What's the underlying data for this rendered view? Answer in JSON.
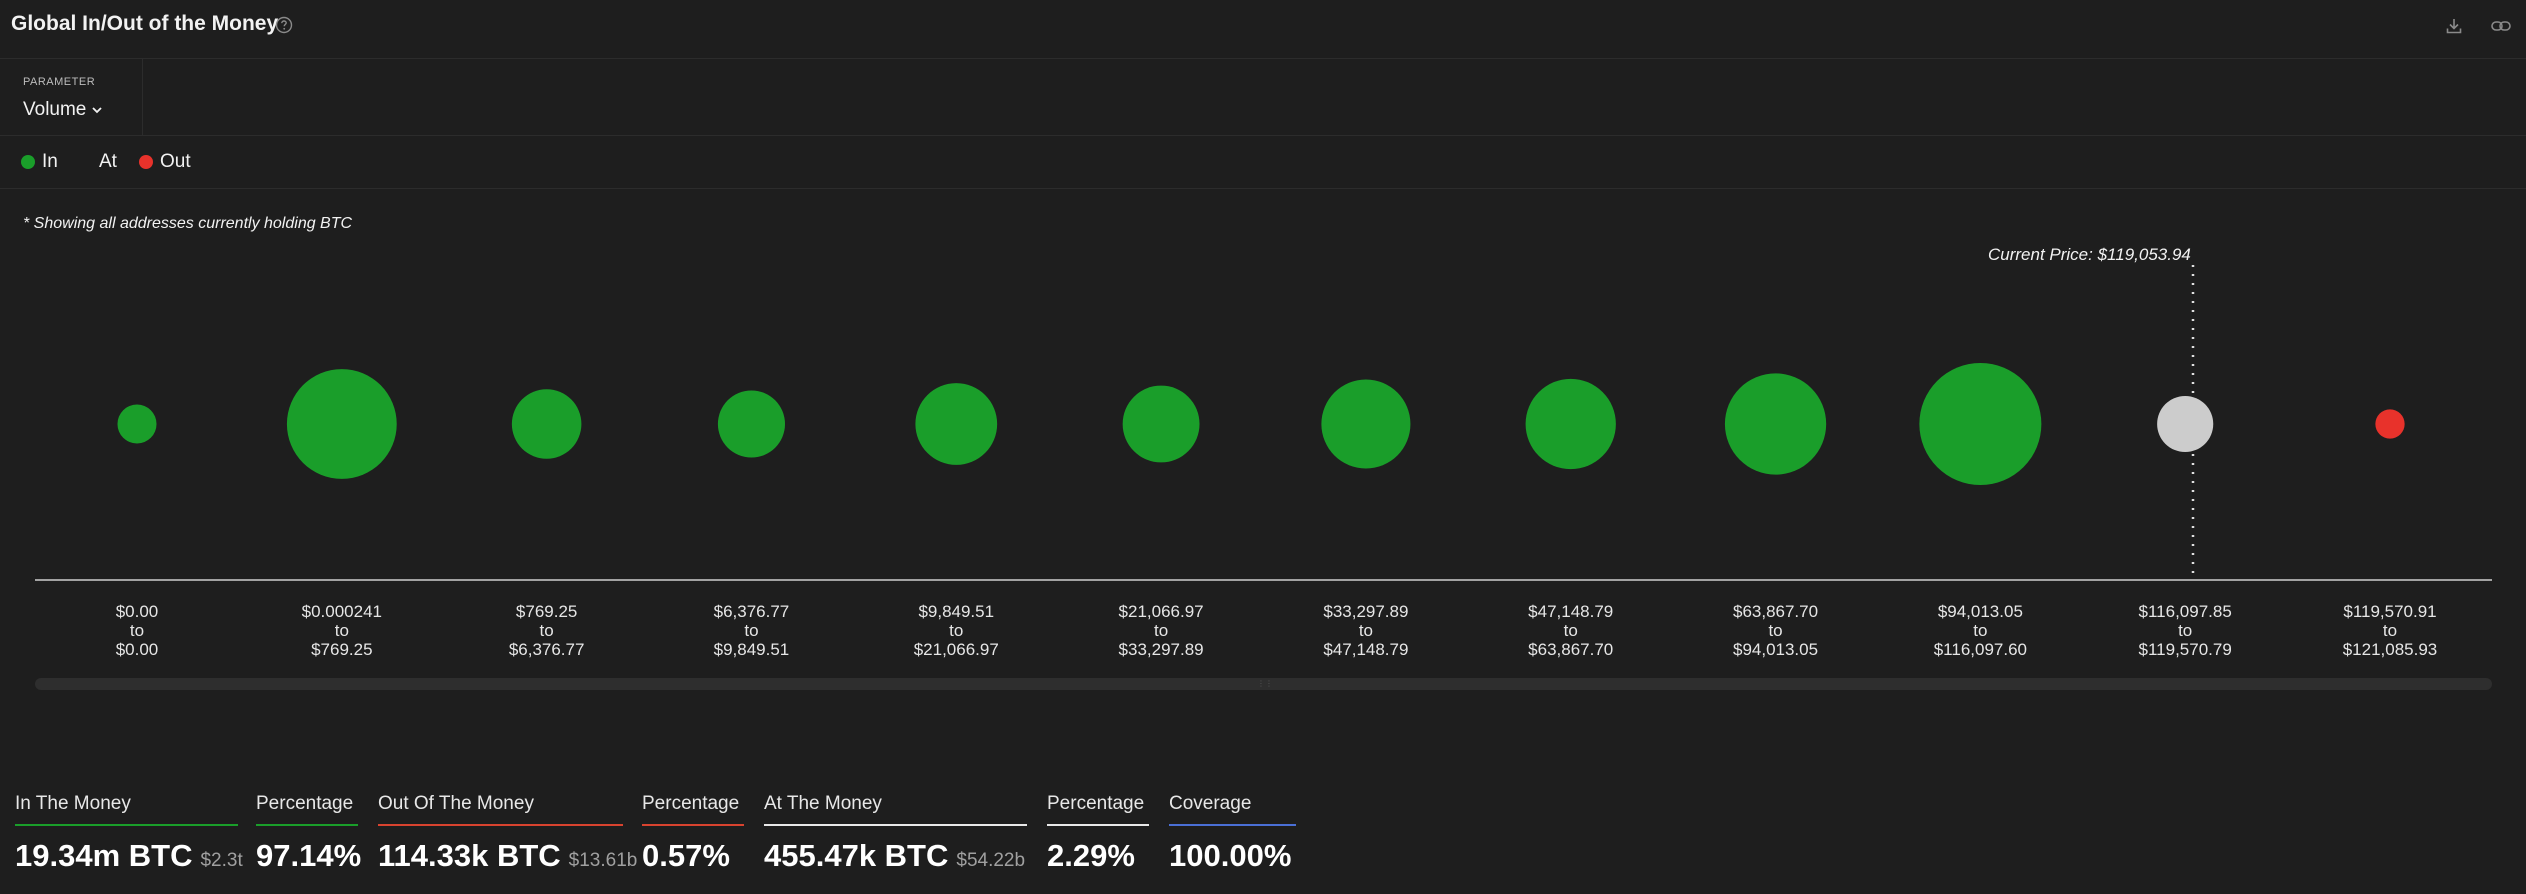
{
  "header": {
    "title": "Global In/Out of the Money",
    "help_icon": "question-circle-icon",
    "download_icon": "download-icon",
    "link_icon": "link-icon"
  },
  "parameter": {
    "label": "PARAMETER",
    "value": "Volume",
    "icon": "chevron-down-icon"
  },
  "legend": {
    "items": [
      {
        "label": "In",
        "color": "#1a9e2a"
      },
      {
        "label": "At",
        "color": ""
      },
      {
        "label": "Out",
        "color": "#e8322b"
      }
    ]
  },
  "note": "* Showing all addresses currently holding BTC",
  "colors": {
    "in": "#1a9e2a",
    "at": "#cccccc",
    "out": "#e8322b",
    "background": "#1e1e1e"
  },
  "chart_data": {
    "type": "scatter",
    "current_price_label": "Current Price: $119,053.94",
    "current_price": 119053.94,
    "buckets": [
      {
        "from": "$0.00",
        "to": "$0.00",
        "status": "in",
        "relative_size": 0.32
      },
      {
        "from": "$0.000241",
        "to": "$769.25",
        "status": "in",
        "relative_size": 0.9
      },
      {
        "from": "$769.25",
        "to": "$6,376.77",
        "status": "in",
        "relative_size": 0.57
      },
      {
        "from": "$6,376.77",
        "to": "$9,849.51",
        "status": "in",
        "relative_size": 0.55
      },
      {
        "from": "$9,849.51",
        "to": "$21,066.97",
        "status": "in",
        "relative_size": 0.67
      },
      {
        "from": "$21,066.97",
        "to": "$33,297.89",
        "status": "in",
        "relative_size": 0.63
      },
      {
        "from": "$33,297.89",
        "to": "$47,148.79",
        "status": "in",
        "relative_size": 0.73
      },
      {
        "from": "$47,148.79",
        "to": "$63,867.70",
        "status": "in",
        "relative_size": 0.74
      },
      {
        "from": "$63,867.70",
        "to": "$94,013.05",
        "status": "in",
        "relative_size": 0.83
      },
      {
        "from": "$94,013.05",
        "to": "$116,097.60",
        "status": "in",
        "relative_size": 1.0
      },
      {
        "from": "$116,097.85",
        "to": "$119,570.79",
        "status": "at",
        "relative_size": 0.46
      },
      {
        "from": "$119,570.91",
        "to": "$121,085.93",
        "status": "out",
        "relative_size": 0.24
      }
    ]
  },
  "stats": [
    {
      "label": "In The Money",
      "value": "19.34m BTC",
      "sub": "$2.3t",
      "color": "#1a9e2a"
    },
    {
      "label": "Percentage",
      "value": "97.14%",
      "sub": "",
      "color": "#1a9e2a"
    },
    {
      "label": "Out Of The Money",
      "value": "114.33k BTC",
      "sub": "$13.61b",
      "color": "#d9432f"
    },
    {
      "label": "Percentage",
      "value": "0.57%",
      "sub": "",
      "color": "#d9432f"
    },
    {
      "label": "At The Money",
      "value": "455.47k BTC",
      "sub": "$54.22b",
      "color": "#e8e8e8"
    },
    {
      "label": "Percentage",
      "value": "2.29%",
      "sub": "",
      "color": "#e8e8e8"
    },
    {
      "label": "Coverage",
      "value": "100.00%",
      "sub": "",
      "color": "#4a6fd6"
    }
  ]
}
